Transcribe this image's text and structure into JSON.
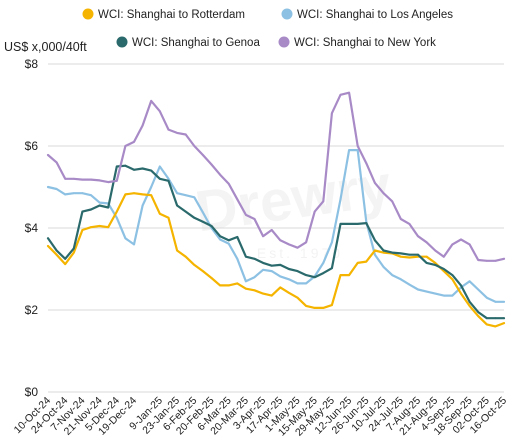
{
  "chart_data": {
    "type": "line",
    "title": "",
    "ylabel": "US$ x,000/40ft",
    "xlabel": "",
    "ylim": [
      0,
      8
    ],
    "yticks": [
      0,
      2,
      4,
      6,
      8
    ],
    "ytick_labels": [
      "$0",
      "$2",
      "$4",
      "$6",
      "$8"
    ],
    "grid": "horizontal",
    "legend": "top",
    "watermark": {
      "text": "Drewry",
      "sub": "Est. 1970"
    },
    "x": [
      "10-Oct-24",
      "17-Oct-24",
      "24-Oct-24",
      "31-Oct-24",
      "7-Nov-24",
      "14-Nov-24",
      "21-Nov-24",
      "28-Nov-24",
      "5-Dec-24",
      "12-Dec-24",
      "19-Dec-24",
      "26-Dec-24",
      "2-Jan-25",
      "9-Jan-25",
      "16-Jan-25",
      "23-Jan-25",
      "30-Jan-25",
      "6-Feb-25",
      "13-Feb-25",
      "20-Feb-25",
      "27-Feb-25",
      "6-Mar-25",
      "13-Mar-25",
      "20-Mar-25",
      "27-Mar-25",
      "3-Apr-25",
      "10-Apr-25",
      "17-Apr-25",
      "24-Apr-25",
      "1-May-25",
      "8-May-25",
      "15-May-25",
      "22-May-25",
      "29-May-25",
      "5-Jun-25",
      "12-Jun-25",
      "19-Jun-25",
      "26-Jun-25",
      "3-Jul-25",
      "10-Jul-25",
      "17-Jul-25",
      "24-Jul-25",
      "31-Jul-25",
      "7-Aug-25",
      "14-Aug-25",
      "21-Aug-25",
      "28-Aug-25",
      "4-Sep-25",
      "11-Sep-25",
      "18-Sep-25",
      "25-Sep-25",
      "02-Oct-25",
      "09-Oct-25",
      "16-Oct-25"
    ],
    "x_tick_labels": [
      "10-Oct-24",
      "24-Oct-24",
      "7-Nov-24",
      "21-Nov-24",
      "5-Dec-24",
      "19-Dec-24",
      "9-Jan-25",
      "23-Jan-25",
      "6-Feb-25",
      "20-Feb-25",
      "6-Mar-25",
      "20-Mar-25",
      "3-Apr-25",
      "17-Apr-25",
      "1-May-25",
      "15-May-25",
      "29-May-25",
      "12-Jun-25",
      "26-Jun-25",
      "10-Jul-25",
      "24-Jul-25",
      "7-Aug-25",
      "21-Aug-25",
      "4-Sep-25",
      "18-Sep-25",
      "02-Oct-25",
      "16-Oct-25"
    ],
    "series": [
      {
        "name": "WCI: Shanghai to Rotterdam",
        "color": "#f5b400",
        "values": [
          3.56,
          3.35,
          3.12,
          3.4,
          3.95,
          4.02,
          4.05,
          4.02,
          4.4,
          4.82,
          4.85,
          4.82,
          4.8,
          4.35,
          4.25,
          3.45,
          3.3,
          3.1,
          2.95,
          2.78,
          2.6,
          2.6,
          2.65,
          2.52,
          2.48,
          2.4,
          2.35,
          2.55,
          2.42,
          2.3,
          2.1,
          2.05,
          2.05,
          2.12,
          2.85,
          2.85,
          3.15,
          3.18,
          3.45,
          3.4,
          3.38,
          3.3,
          3.28,
          3.3,
          3.3,
          3.15,
          2.95,
          2.75,
          2.4,
          2.1,
          1.85,
          1.65,
          1.6,
          1.68
        ]
      },
      {
        "name": "WCI: Shanghai to Los Angeles",
        "color": "#8dc1e3",
        "values": [
          5.0,
          4.95,
          4.82,
          4.85,
          4.85,
          4.8,
          4.62,
          4.6,
          4.25,
          3.75,
          3.6,
          4.55,
          5.0,
          5.5,
          5.2,
          4.85,
          4.8,
          4.75,
          4.38,
          4.0,
          3.72,
          3.62,
          3.25,
          2.7,
          2.8,
          2.98,
          2.95,
          2.82,
          2.75,
          2.65,
          2.65,
          2.82,
          3.15,
          3.65,
          4.7,
          5.9,
          5.9,
          4.15,
          3.35,
          3.05,
          2.85,
          2.75,
          2.62,
          2.5,
          2.45,
          2.4,
          2.35,
          2.35,
          2.55,
          2.7,
          2.5,
          2.3,
          2.2,
          2.2
        ]
      },
      {
        "name": "WCI: Shanghai to Genoa",
        "color": "#2b6a6c",
        "values": [
          3.75,
          3.45,
          3.25,
          3.5,
          4.4,
          4.45,
          4.55,
          4.5,
          5.5,
          5.52,
          5.42,
          5.45,
          5.4,
          5.2,
          5.15,
          4.55,
          4.4,
          4.25,
          4.15,
          4.05,
          3.8,
          3.7,
          3.78,
          3.3,
          3.25,
          3.15,
          3.08,
          3.1,
          3.0,
          2.95,
          2.85,
          2.8,
          2.9,
          3.02,
          4.1,
          4.1,
          4.1,
          4.12,
          3.7,
          3.45,
          3.4,
          3.38,
          3.35,
          3.35,
          3.15,
          3.1,
          3.0,
          2.85,
          2.6,
          2.2,
          1.95,
          1.8,
          1.8,
          1.8
        ]
      },
      {
        "name": "WCI: Shanghai to New York",
        "color": "#a88ac7",
        "values": [
          5.78,
          5.6,
          5.2,
          5.2,
          5.18,
          5.18,
          5.16,
          5.12,
          5.15,
          6.0,
          6.1,
          6.5,
          7.1,
          6.85,
          6.4,
          6.32,
          6.28,
          6.0,
          5.78,
          5.55,
          5.3,
          5.08,
          4.7,
          4.32,
          4.22,
          3.8,
          3.95,
          3.7,
          3.6,
          3.52,
          3.65,
          4.4,
          4.65,
          6.8,
          7.25,
          7.3,
          6.0,
          5.58,
          5.1,
          4.85,
          4.65,
          4.22,
          4.1,
          3.8,
          3.65,
          3.45,
          3.3,
          3.6,
          3.72,
          3.6,
          3.22,
          3.2,
          3.2,
          3.25
        ]
      }
    ]
  }
}
